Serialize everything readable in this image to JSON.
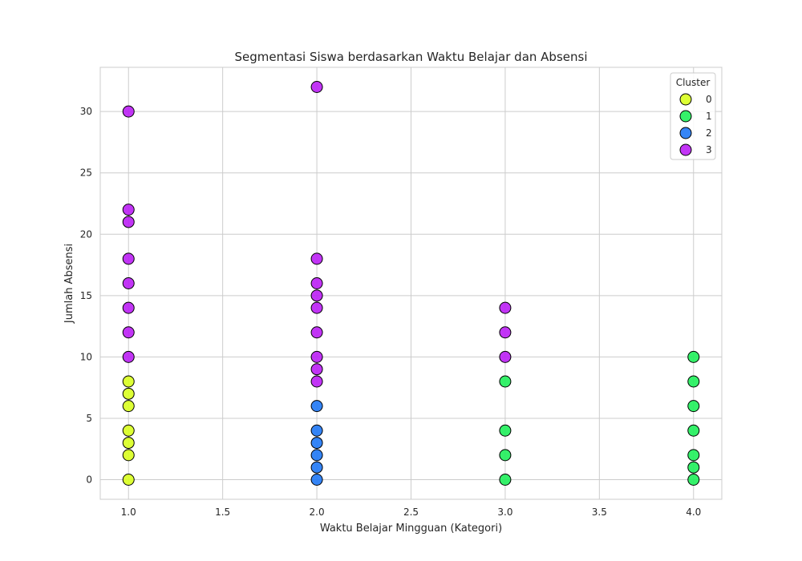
{
  "chart_data": {
    "type": "scatter",
    "title": "Segmentasi Siswa berdasarkan Waktu Belajar dan Absensi",
    "xlabel": "Waktu Belajar Mingguan (Kategori)",
    "ylabel": "Jumlah Absensi",
    "xlim": [
      0.85,
      4.15
    ],
    "ylim": [
      -1.6,
      33.6
    ],
    "xticks": [
      1.0,
      1.5,
      2.0,
      2.5,
      3.0,
      3.5,
      4.0
    ],
    "xtick_labels": [
      "1.0",
      "1.5",
      "2.0",
      "2.5",
      "3.0",
      "3.5",
      "4.0"
    ],
    "yticks": [
      0,
      5,
      10,
      15,
      20,
      25,
      30
    ],
    "ytick_labels": [
      "0",
      "5",
      "10",
      "15",
      "20",
      "25",
      "30"
    ],
    "grid": true,
    "legend": {
      "title": "Cluster",
      "placement": "top-right"
    },
    "series": [
      {
        "name": "0",
        "color": "#d9ff1f",
        "points": [
          [
            1,
            0
          ],
          [
            1,
            2
          ],
          [
            1,
            3
          ],
          [
            1,
            4
          ],
          [
            1,
            6
          ],
          [
            1,
            7
          ],
          [
            1,
            8
          ]
        ]
      },
      {
        "name": "1",
        "color": "#1fef5a",
        "points": [
          [
            3,
            0
          ],
          [
            3,
            2
          ],
          [
            3,
            4
          ],
          [
            3,
            8
          ],
          [
            4,
            0
          ],
          [
            4,
            1
          ],
          [
            4,
            2
          ],
          [
            4,
            4
          ],
          [
            4,
            6
          ],
          [
            4,
            8
          ],
          [
            4,
            10
          ]
        ]
      },
      {
        "name": "2",
        "color": "#1f78f5",
        "points": [
          [
            2,
            0
          ],
          [
            2,
            1
          ],
          [
            2,
            2
          ],
          [
            2,
            3
          ],
          [
            2,
            4
          ],
          [
            2,
            6
          ]
        ]
      },
      {
        "name": "3",
        "color": "#bb1ff5",
        "points": [
          [
            1,
            10
          ],
          [
            1,
            12
          ],
          [
            1,
            14
          ],
          [
            1,
            16
          ],
          [
            1,
            18
          ],
          [
            1,
            21
          ],
          [
            1,
            22
          ],
          [
            1,
            30
          ],
          [
            2,
            8
          ],
          [
            2,
            9
          ],
          [
            2,
            10
          ],
          [
            2,
            12
          ],
          [
            2,
            14
          ],
          [
            2,
            15
          ],
          [
            2,
            16
          ],
          [
            2,
            18
          ],
          [
            2,
            32
          ],
          [
            3,
            10
          ],
          [
            3,
            12
          ],
          [
            3,
            14
          ]
        ]
      }
    ]
  }
}
